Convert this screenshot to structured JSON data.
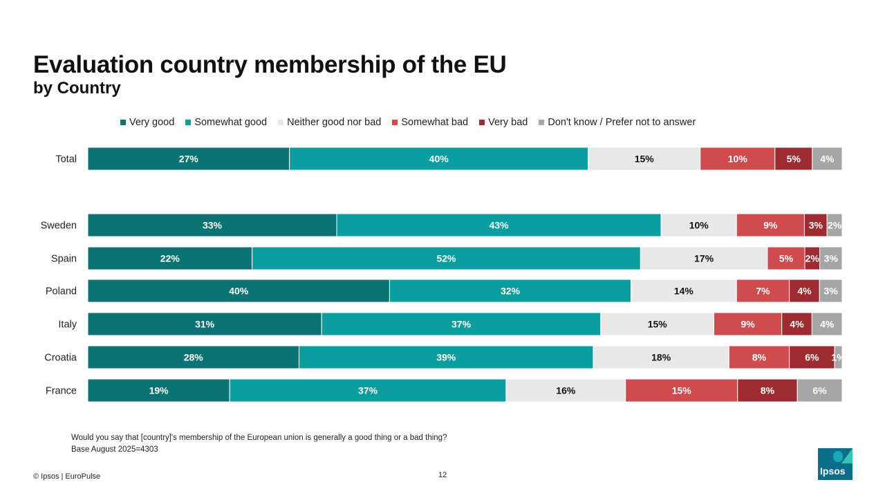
{
  "slide": {
    "title": "Evaluation country membership of the EU",
    "subtitle": "by Country",
    "note_question": "Would you say that [country]'s membership of the European union is generally a good thing or a bad thing?",
    "note_base": "Base August 2025=4303",
    "footer": "© Ipsos | EuroPulse",
    "page_number": "12",
    "logo_text": "Ipsos"
  },
  "chart_data": {
    "type": "bar",
    "orientation": "horizontal",
    "stacked": true,
    "legend_position": "top",
    "categories": [
      "Total",
      "Sweden",
      "Spain",
      "Poland",
      "Italy",
      "Croatia",
      "France"
    ],
    "series": [
      {
        "name": "Very good",
        "color": "#0b7373",
        "label_color": "#ffffff",
        "values": [
          27,
          33,
          22,
          40,
          31,
          28,
          19
        ]
      },
      {
        "name": "Somewhat good",
        "color": "#0a9e9f",
        "label_color": "#ffffff",
        "values": [
          40,
          43,
          52,
          32,
          37,
          39,
          37
        ]
      },
      {
        "name": "Neither good nor bad",
        "color": "#e8e8e8",
        "label_color": "#111111",
        "values": [
          15,
          10,
          17,
          14,
          15,
          18,
          16
        ]
      },
      {
        "name": "Somewhat bad",
        "color": "#d04b4e",
        "label_color": "#ffffff",
        "values": [
          10,
          9,
          5,
          7,
          9,
          8,
          15
        ]
      },
      {
        "name": "Very bad",
        "color": "#9e2b30",
        "label_color": "#ffffff",
        "values": [
          5,
          3,
          2,
          4,
          4,
          6,
          8
        ]
      },
      {
        "name": "Don't know / Prefer not to answer",
        "color": "#a6a6a6",
        "label_color": "#ffffff",
        "values": [
          4,
          2,
          3,
          3,
          4,
          1,
          6
        ]
      }
    ],
    "value_suffix": "%",
    "xlim": [
      0,
      100
    ]
  }
}
